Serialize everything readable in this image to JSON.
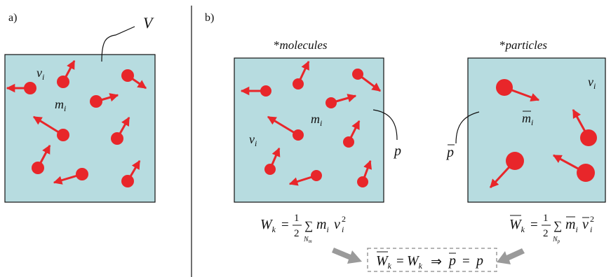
{
  "panel_a": {
    "label": "a)",
    "volume_label": "V",
    "velocity_label": "v",
    "velocity_sub": "i",
    "mass_label": "m",
    "mass_sub": "i"
  },
  "panel_b": {
    "label": "b)",
    "molecules": {
      "title_star": "*",
      "title": "molecules",
      "velocity_label": "v",
      "velocity_sub": "i",
      "mass_label": "m",
      "mass_sub": "i",
      "pressure_label": "p",
      "eq_lhs": "W",
      "eq_lhs_sub": "k",
      "eq_rest": "=",
      "frac_num": "1",
      "frac_den": "2",
      "sum": "∑",
      "sum_sub": "N",
      "sum_sub2": "m",
      "term_m": "m",
      "term_m_sub": "i",
      "term_v": "v",
      "term_v_sub": "i",
      "term_v_sup": "2"
    },
    "particles": {
      "title_star": "*",
      "title": "particles",
      "velocity_label": "v",
      "velocity_sub": "i",
      "mass_label": "m",
      "mass_sub": "i",
      "pressure_label": "p",
      "eq_lhs": "W",
      "eq_lhs_sub": "k",
      "eq_rest": "=",
      "frac_num": "1",
      "frac_den": "2",
      "sum": "∑",
      "sum_sub": "N",
      "sum_sub2": "p",
      "term_m": "m",
      "term_m_sub": "i",
      "term_v": "v",
      "term_v_sub": "i",
      "term_v_sup": "2"
    },
    "result": {
      "w1": "W",
      "w1_sub": "k",
      "eq": "=",
      "w2": "W",
      "w2_sub": "k",
      "implies": "⇒",
      "p1": "p",
      "eq2": "=",
      "p2": "p"
    }
  },
  "colors": {
    "box_fill": "#b7dce0",
    "particle": "#e8262a",
    "arrow_gray": "#9a9a9a"
  }
}
